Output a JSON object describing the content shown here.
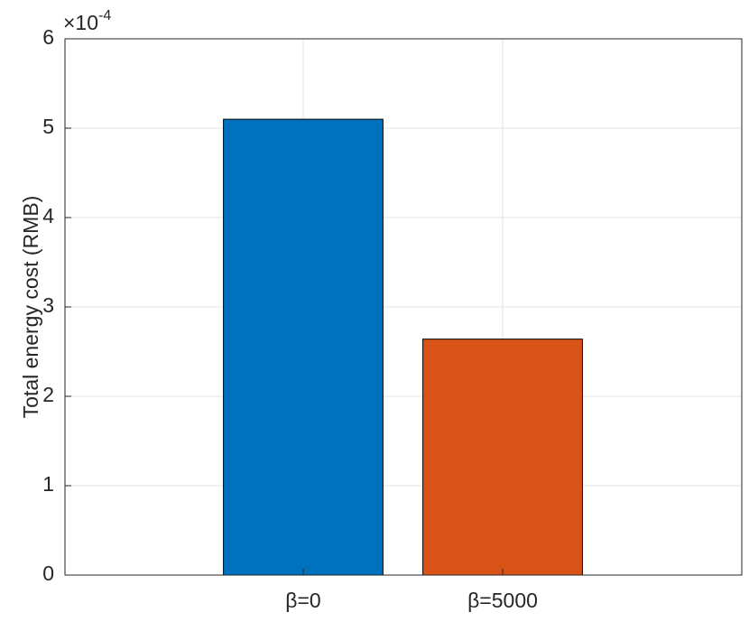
{
  "chart_data": {
    "type": "bar",
    "y_label": "Total energy cost   (RMB)",
    "y_multiplier": {
      "base": "×10",
      "exponent": "-4"
    },
    "categories": [
      "β=0",
      "β=5000"
    ],
    "values": [
      5.1,
      2.64
    ],
    "colors": [
      "#0072bd",
      "#d95319"
    ],
    "ylim": [
      0,
      6
    ],
    "yticks": [
      0,
      1,
      2,
      3,
      4,
      5,
      6
    ],
    "grid": true
  }
}
